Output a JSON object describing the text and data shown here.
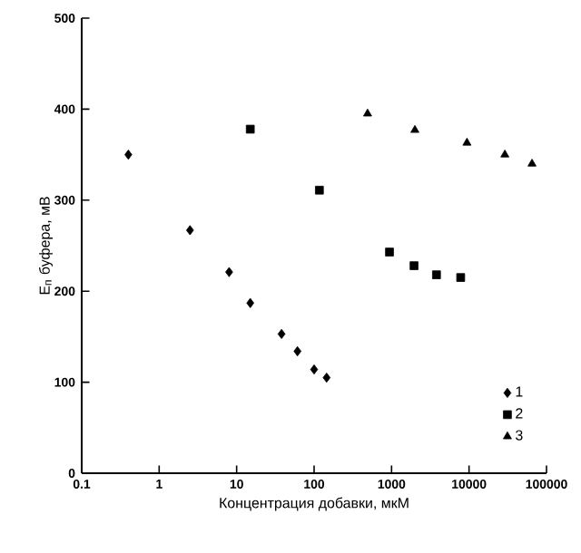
{
  "chart_data": {
    "type": "scatter",
    "xlabel": "Концентрация добавки, мкМ",
    "ylabel": "E$_{п}$ буфера, мВ",
    "log": "x",
    "xlim": [
      0.1,
      100000
    ],
    "ylim": [
      0,
      500
    ],
    "xticks": [
      0.1,
      1,
      10,
      100,
      1000,
      10000,
      100000
    ],
    "yticks": [
      0,
      100,
      200,
      300,
      400,
      500
    ],
    "grid": false,
    "legend": "bottom right",
    "series": [
      {
        "name": "1",
        "color": "#000000",
        "marker": "diamond",
        "x": [
          0.4,
          2.5,
          8,
          15,
          38,
          61,
          100,
          145
        ],
        "values": [
          350,
          267,
          221,
          187,
          153,
          134,
          114,
          105
        ]
      },
      {
        "name": "2",
        "color": "#000000",
        "marker": "square",
        "x": [
          15,
          117,
          940,
          1950,
          3800,
          7800
        ],
        "values": [
          378,
          311,
          243,
          228,
          218,
          215
        ]
      },
      {
        "name": "3",
        "color": "#000000",
        "marker": "triangle",
        "x": [
          490,
          2000,
          9400,
          29000,
          65000
        ],
        "values": [
          395,
          377,
          363,
          350,
          340
        ]
      }
    ]
  }
}
